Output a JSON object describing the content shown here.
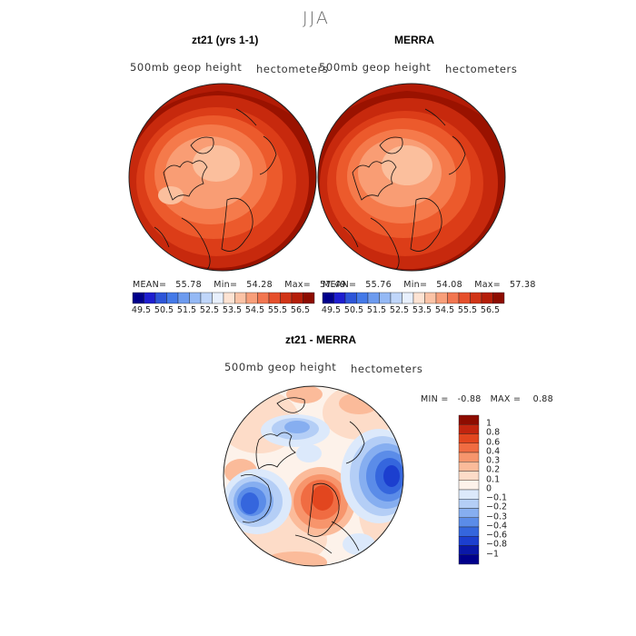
{
  "figure": {
    "season": "JJA"
  },
  "panels": [
    {
      "title": "zt21 (yrs 1-1)",
      "field_label": "500mb geop height",
      "units": "hectometers",
      "stats": {
        "mean_label": "MEAN=",
        "mean": "55.78",
        "min_label": "Min=",
        "min": "54.28",
        "max_label": "Max=",
        "max": "57.49"
      }
    },
    {
      "title": "MERRA",
      "field_label": "500mb geop height",
      "units": "hectometers",
      "stats": {
        "mean_label": "MEAN=",
        "mean": "55.76",
        "min_label": "Min=",
        "min": "54.08",
        "max_label": "Max=",
        "max": "57.38"
      }
    },
    {
      "title": "zt21 - MERRA",
      "field_label": "500mb geop height",
      "units": "hectometers",
      "stats": {
        "min_label": "MIN =",
        "min": "-0.88",
        "max_label": "MAX =",
        "max": "0.88"
      }
    }
  ],
  "colorbar_top": {
    "ticks": [
      "49.5",
      "50.5",
      "51.5",
      "52.5",
      "53.5",
      "54.5",
      "55.5",
      "56.5"
    ],
    "colors": [
      "#00008b",
      "#1e1ed0",
      "#2d55d8",
      "#4479e8",
      "#6d9bef",
      "#95b9f5",
      "#c0d6fa",
      "#e8f0fd",
      "#fde3d3",
      "#fbc3a6",
      "#f89f7a",
      "#f27650",
      "#e6502c",
      "#d13517",
      "#b51e09",
      "#8d0c00"
    ]
  },
  "colorbar_diff": {
    "ticks": [
      "1",
      "0.8",
      "0.6",
      "0.4",
      "0.3",
      "0.2",
      "0.1",
      "0",
      "−0.1",
      "−0.2",
      "−0.3",
      "−0.4",
      "−0.6",
      "−0.8",
      "−1"
    ],
    "colors": [
      "#8d0c00",
      "#c2250f",
      "#e2461f",
      "#f06c42",
      "#f7956c",
      "#fbbb9a",
      "#fddcc8",
      "#fdf2ea",
      "#dce9fb",
      "#b4cef6",
      "#86aef0",
      "#5b8ce8",
      "#3566dd",
      "#1c3fcf",
      "#0a18a8",
      "#00008b"
    ]
  }
}
